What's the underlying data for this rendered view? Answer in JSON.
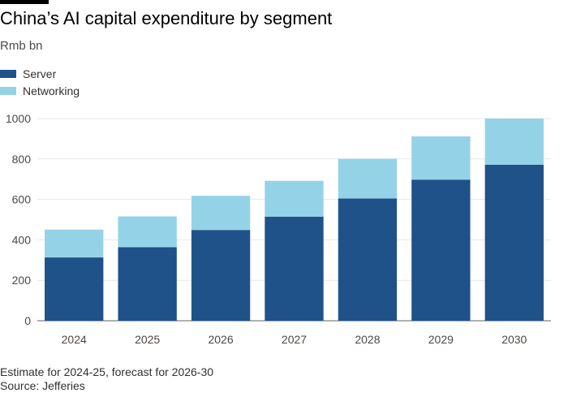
{
  "chart_data": {
    "type": "bar",
    "stacked": true,
    "title": "China’s AI capital expenditure by segment",
    "subtitle": "Rmb bn",
    "categories": [
      "2024",
      "2025",
      "2026",
      "2027",
      "2028",
      "2029",
      "2030"
    ],
    "series": [
      {
        "name": "Server",
        "color": "#1f5289",
        "values": [
          313,
          364,
          449,
          515,
          605,
          698,
          772
        ]
      },
      {
        "name": "Networking",
        "color": "#94d3e7",
        "values": [
          138,
          152,
          169,
          177,
          196,
          214,
          228
        ]
      }
    ],
    "y_ticks": [
      0,
      200,
      400,
      600,
      800,
      1000
    ],
    "ylim": [
      0,
      1000
    ],
    "legend_position": "top-left",
    "grid": true,
    "footnote": "Estimate for 2024-25, forecast for 2026-30",
    "source": "Source: Jefferies"
  }
}
